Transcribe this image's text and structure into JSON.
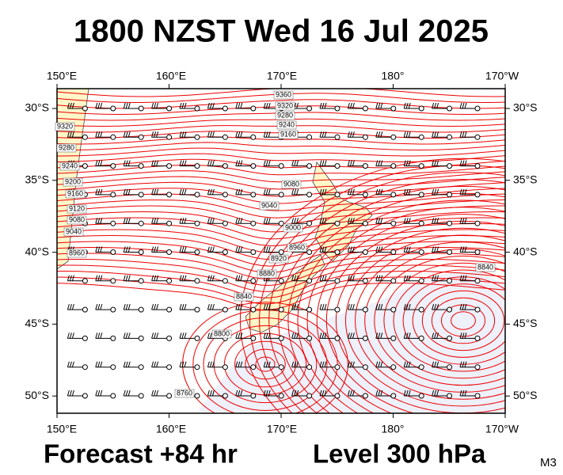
{
  "title": "1800 NZST Wed 16 Jul 2025",
  "map": {
    "lon_labels": [
      "150°E",
      "160°E",
      "170°E",
      "180°",
      "170°W"
    ],
    "lat_labels": [
      "30°S",
      "35°S",
      "40°S",
      "45°S",
      "50°S"
    ],
    "contour_labels": [
      9360,
      9320,
      9280,
      9240,
      9160,
      9320,
      9280,
      9240,
      9200,
      9160,
      9120,
      9080,
      9040,
      8960,
      9080,
      9040,
      9000,
      8960,
      8920,
      8880,
      8840,
      8800,
      8760,
      8840
    ]
  },
  "footer": {
    "forecast": "Forecast +84 hr",
    "level": "Level 300 hPa",
    "model": "M3"
  }
}
